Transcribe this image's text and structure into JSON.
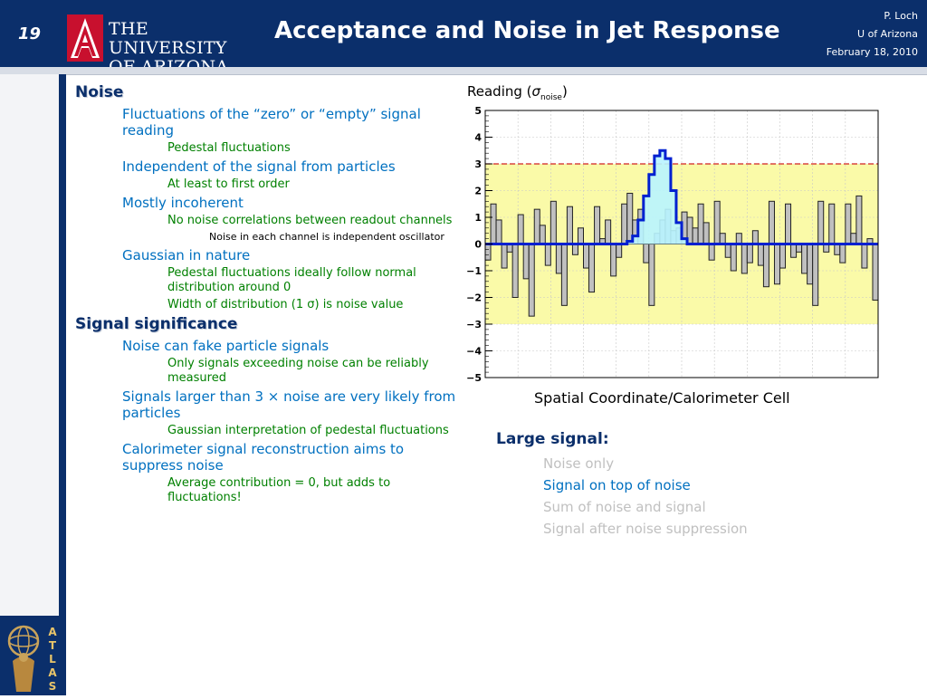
{
  "header": {
    "slide_number": "19",
    "university": [
      "THE UNIVERSITY",
      "OF ARIZONA."
    ],
    "title": "Acceptance and Noise in Jet Response",
    "meta": [
      "P. Loch",
      "U of Arizona",
      "February 18, 2010"
    ]
  },
  "bullets": [
    {
      "level": 1,
      "text": "Noise"
    },
    {
      "level": 2,
      "text": "Fluctuations of the “zero” or “empty” signal reading"
    },
    {
      "level": 3,
      "text": "Pedestal fluctuations"
    },
    {
      "level": 2,
      "text": "Independent of the signal from particles"
    },
    {
      "level": 3,
      "text": "At least to first order"
    },
    {
      "level": 2,
      "text": "Mostly incoherent"
    },
    {
      "level": 3,
      "text": "No noise correlations between readout channels"
    },
    {
      "level": 4,
      "text": "Noise in each channel is independent oscillator"
    },
    {
      "level": 2,
      "text": "Gaussian in nature"
    },
    {
      "level": 3,
      "text": "Pedestal fluctuations ideally follow normal distribution around 0"
    },
    {
      "level": 3,
      "text": "Width of distribution (1 σ) is noise value"
    },
    {
      "level": 1,
      "text": "Signal significance"
    },
    {
      "level": 2,
      "text": "Noise can fake particle signals"
    },
    {
      "level": 3,
      "text": "Only signals exceeding noise can be reliably measured"
    },
    {
      "level": 2,
      "text": "Signals larger than 3 × noise are very likely from particles"
    },
    {
      "level": 3,
      "text": "Gaussian interpretation of pedestal fluctuations"
    },
    {
      "level": 2,
      "text": "Calorimeter signal reconstruction aims to suppress noise"
    },
    {
      "level": 3,
      "text": "Average contribution = 0, but adds to fluctuations!"
    }
  ],
  "large_signal": {
    "title": "Large signal:",
    "items": [
      {
        "text": "Noise only",
        "color": "#c0c0c0"
      },
      {
        "text": "Signal on top of noise",
        "color": "#0070c0"
      },
      {
        "text": "Sum of noise and signal",
        "color": "#c0c0c0"
      },
      {
        "text": "Signal after noise suppression",
        "color": "#c0c0c0"
      }
    ]
  },
  "colors": {
    "header_bg": "#0b2f6b",
    "noise_fill": "#c0c0c0",
    "signal_fill": "#b8f4ff",
    "signal_line": "#0020d0",
    "band_fill": "#fafaa8",
    "threshold_line": "#d02020"
  },
  "chart_data": {
    "type": "bar",
    "ylabel_prefix": "Reading (",
    "ylabel_symbol": "σ",
    "ylabel_sub": "noise",
    "ylabel_suffix": ")",
    "xlabel": "Spatial Coordinate/Calorimeter Cell",
    "ylim": [
      -5,
      5
    ],
    "yticks": [
      -5,
      -4,
      -3,
      -2,
      -1,
      0,
      1,
      2,
      3,
      4,
      5
    ],
    "ytick_labels": [
      "−5",
      "−4",
      "−3",
      "−2",
      "−1",
      "0",
      "1",
      "2",
      "3",
      "4",
      "5"
    ],
    "band": [
      -3,
      3
    ],
    "threshold": 3,
    "n_cells": 72,
    "noise": [
      -0.6,
      1.5,
      0.9,
      -0.9,
      -0.3,
      -2.0,
      1.1,
      -1.3,
      -2.7,
      1.3,
      0.7,
      -0.8,
      1.6,
      -1.1,
      -2.3,
      1.4,
      -0.4,
      0.6,
      -0.9,
      -1.8,
      1.4,
      0.2,
      0.9,
      -1.2,
      -0.5,
      1.5,
      1.9,
      0.9,
      1.3,
      -0.7,
      -2.3,
      0.4,
      0.9,
      1.3,
      0.5,
      0.6,
      1.2,
      1.0,
      0.6,
      1.5,
      0.8,
      -0.6,
      1.6,
      0.4,
      -0.5,
      -1.0,
      0.4,
      -1.1,
      -0.7,
      0.5,
      -0.8,
      -1.6,
      1.6,
      -1.5,
      -0.9,
      1.5,
      -0.5,
      -0.3,
      -1.1,
      -1.5,
      -2.3,
      1.6,
      -0.3,
      1.5,
      -0.4,
      -0.7,
      1.5,
      0.4,
      1.8,
      -0.9,
      0.2,
      -2.1
    ],
    "signal": [
      0,
      0,
      0,
      0,
      0,
      0,
      0,
      0,
      0,
      0,
      0,
      0,
      0,
      0,
      0,
      0,
      0,
      0,
      0,
      0,
      0,
      0,
      0,
      0,
      0,
      0,
      0.1,
      0.3,
      0.9,
      1.8,
      2.6,
      3.3,
      3.5,
      3.2,
      2.0,
      0.8,
      0.2,
      0,
      0,
      0,
      0,
      0,
      0,
      0,
      0,
      0,
      0,
      0,
      0,
      0,
      0,
      0,
      0,
      0,
      0,
      0,
      0,
      0,
      0,
      0,
      0,
      0,
      0,
      0,
      0,
      0,
      0,
      0,
      0,
      0,
      0,
      0
    ]
  }
}
